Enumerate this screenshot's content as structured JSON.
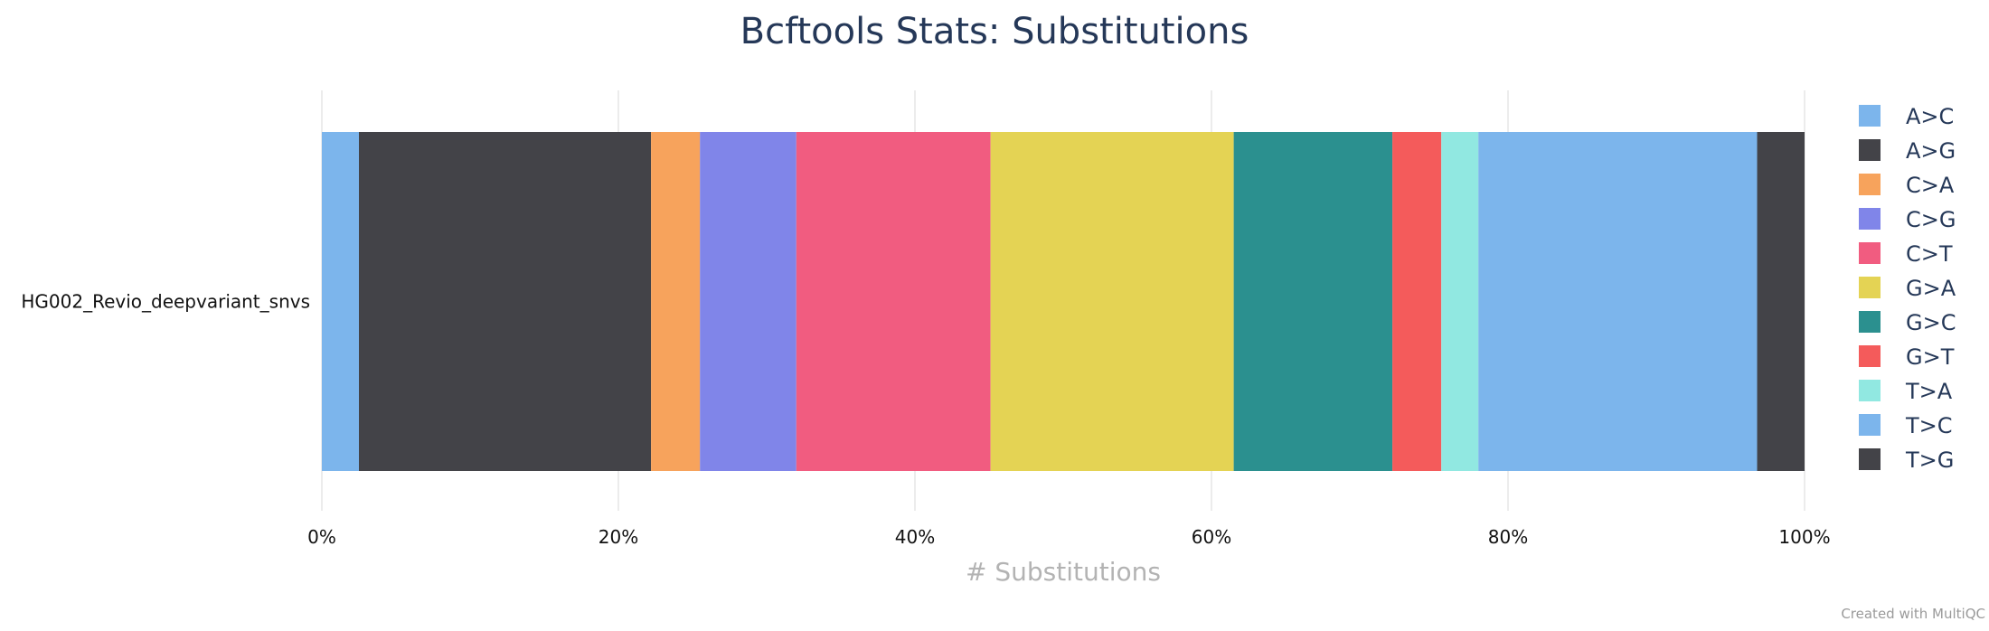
{
  "chart_data": {
    "type": "bar",
    "orientation": "horizontal",
    "stacked": "percent",
    "title": "Bcftools Stats: Substitutions",
    "xlabel": "# Substitutions",
    "ylabel": "",
    "xlim": [
      0,
      100
    ],
    "x_ticks": [
      "0%",
      "20%",
      "40%",
      "60%",
      "80%",
      "100%"
    ],
    "categories": [
      "HG002_Revio_deepvariant_snvs"
    ],
    "grid": true,
    "legend_position": "right",
    "series": [
      {
        "name": "A>C",
        "color": "#7cb5ec",
        "values": [
          2.5
        ]
      },
      {
        "name": "A>G",
        "color": "#434348",
        "values": [
          19.7
        ]
      },
      {
        "name": "C>A",
        "color": "#f7a35c",
        "values": [
          3.3
        ]
      },
      {
        "name": "C>G",
        "color": "#8085e9",
        "values": [
          6.5
        ]
      },
      {
        "name": "C>T",
        "color": "#f15c80",
        "values": [
          13.1
        ]
      },
      {
        "name": "G>A",
        "color": "#e4d354",
        "values": [
          16.4
        ]
      },
      {
        "name": "G>C",
        "color": "#2b908f",
        "values": [
          10.7
        ]
      },
      {
        "name": "G>T",
        "color": "#f45b5b",
        "values": [
          3.3
        ]
      },
      {
        "name": "T>A",
        "color": "#91e8e1",
        "values": [
          2.5
        ]
      },
      {
        "name": "T>C",
        "color": "#7cb5ec",
        "values": [
          18.8
        ]
      },
      {
        "name": "T>G",
        "color": "#434348",
        "values": [
          3.2
        ]
      }
    ]
  },
  "footer": {
    "credit": "Created with MultiQC"
  }
}
